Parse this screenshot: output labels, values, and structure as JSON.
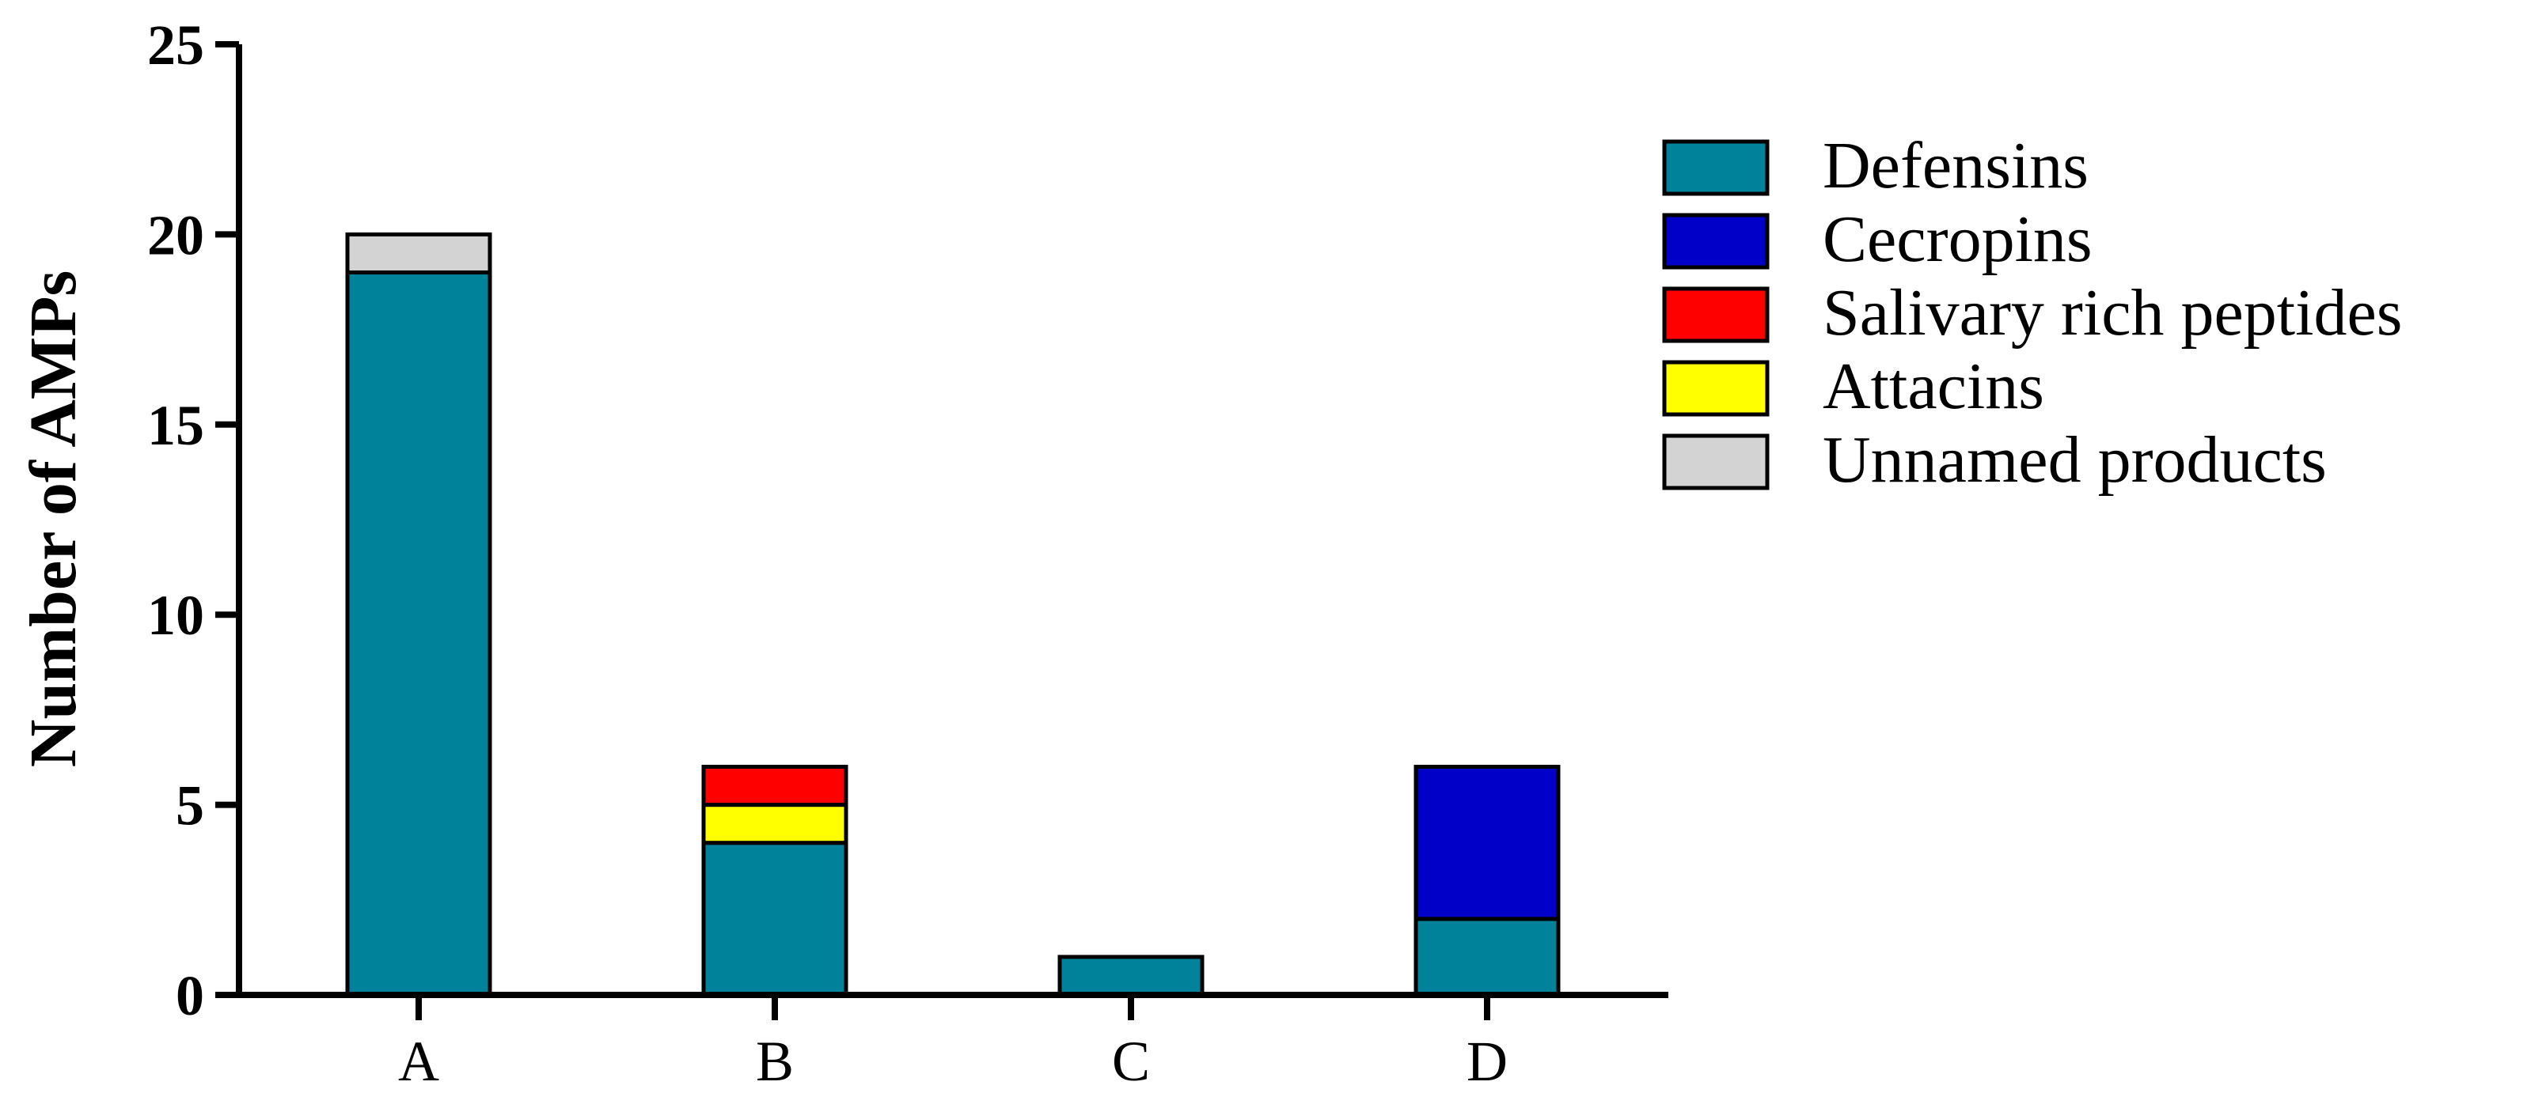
{
  "chart_data": {
    "type": "bar",
    "stacked": true,
    "title": "",
    "xlabel": "",
    "ylabel": "Number of AMPs",
    "ylim": [
      0,
      25
    ],
    "yticks": [
      "0",
      "5",
      "10",
      "15",
      "20",
      "25"
    ],
    "categories": [
      "A",
      "B",
      "C",
      "D"
    ],
    "legend_position": "top-right",
    "grid": false,
    "series": [
      {
        "name": "Defensins",
        "color": "#00829B",
        "values": [
          19,
          4,
          1,
          2
        ]
      },
      {
        "name": "Cecropins",
        "color": "#0000C8",
        "values": [
          0,
          0,
          0,
          4
        ]
      },
      {
        "name": "Salivary rich peptides",
        "color": "#FF0000",
        "values": [
          0,
          1,
          0,
          0
        ]
      },
      {
        "name": "Attacins",
        "color": "#FFFF00",
        "values": [
          0,
          1,
          0,
          0
        ]
      },
      {
        "name": "Unnamed products",
        "color": "#D3D3D3",
        "values": [
          1,
          0,
          0,
          0
        ]
      }
    ],
    "stack_order": [
      "Defensins",
      "Attacins",
      "Salivary rich peptides",
      "Cecropins",
      "Unnamed products"
    ]
  }
}
